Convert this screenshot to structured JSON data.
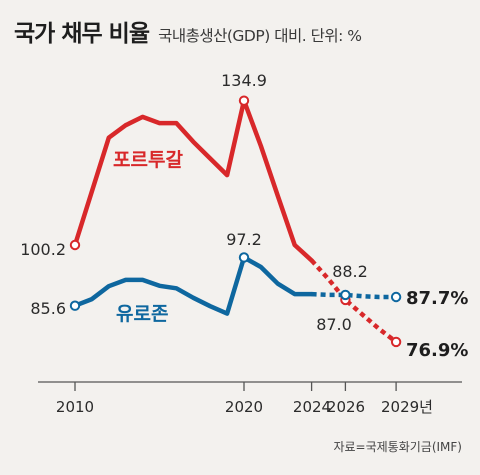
{
  "header": {
    "title": "국가 채무 비율",
    "subtitle": "국내총생산(GDP) 대비. 단위: %"
  },
  "source": "자료=국제통화기금(IMF)",
  "colors": {
    "portugal": "#d8282a",
    "eurozone": "#0e679f",
    "axis": "#555555",
    "background": "#f3f1ee"
  },
  "chart_data": {
    "type": "line",
    "title": "국가 채무 비율",
    "subtitle": "국내총생산(GDP) 대비. 단위: %",
    "x_ticks": [
      "2010",
      "2020",
      "2024",
      "2026",
      "2029년"
    ],
    "ylim": [
      70,
      140
    ],
    "grid": false,
    "series": [
      {
        "name": "포르투갈",
        "key": "portugal",
        "x": [
          2010,
          2012,
          2013,
          2014,
          2015,
          2016,
          2017,
          2018,
          2019,
          2020,
          2021,
          2022,
          2023,
          2024,
          2025,
          2026,
          2027,
          2028,
          2029
        ],
        "values": [
          100.2,
          126.0,
          129.0,
          131.0,
          129.5,
          129.5,
          125.0,
          121.0,
          117.0,
          134.9,
          124.0,
          112.0,
          100.2,
          96.5,
          92.0,
          87.0,
          83.5,
          80.0,
          76.9
        ],
        "projection_from": 2024
      },
      {
        "name": "유로존",
        "key": "eurozone",
        "x": [
          2010,
          2011,
          2012,
          2013,
          2014,
          2015,
          2016,
          2017,
          2018,
          2019,
          2020,
          2021,
          2022,
          2023,
          2024,
          2025,
          2026,
          2027,
          2028,
          2029
        ],
        "values": [
          85.6,
          87.2,
          90.3,
          91.8,
          91.8,
          90.4,
          89.8,
          87.5,
          85.5,
          83.7,
          97.2,
          94.9,
          90.9,
          88.4,
          88.4,
          88.2,
          88.2,
          87.9,
          87.7,
          87.7
        ],
        "projection_from": 2024
      }
    ],
    "labels": {
      "portugal_start": "100.2",
      "portugal_peak": "134.9",
      "portugal_2026": "87.0",
      "portugal_end": "76.9%",
      "eurozone_start": "85.6",
      "eurozone_peak": "97.2",
      "eurozone_2026": "88.2",
      "eurozone_end": "87.7%"
    }
  }
}
